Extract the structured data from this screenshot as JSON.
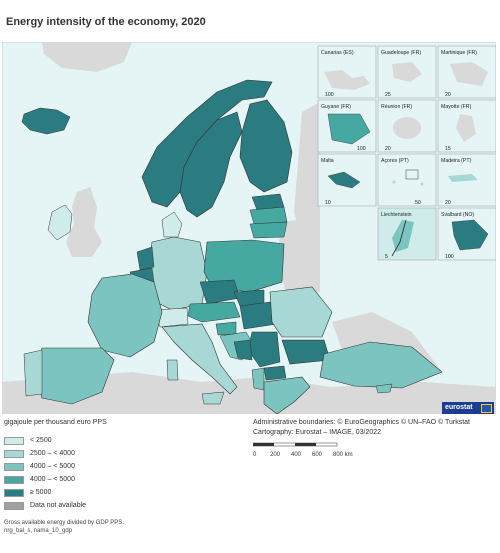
{
  "title": "Energy intensity of the economy, 2020",
  "units": "gigajoule per thousand euro PPS",
  "credits": {
    "line1": "Administrative boundaries: © EuroGeographics © UN–FAO © Turkstat",
    "line2": "Cartography: Eurostat – IMAGE, 03/2022"
  },
  "scale": {
    "ticks": [
      "0",
      "200",
      "400",
      "600",
      "800 km"
    ]
  },
  "logo": "eurostat",
  "colors": {
    "sea": "#e5f5f6",
    "outside": "#d9d9d9",
    "c1": "#d0ecea",
    "c2": "#a7d8d5",
    "c3": "#7cc4bf",
    "c4": "#45a8a1",
    "c5": "#2a7c80",
    "na": "#a0a0a0"
  },
  "legend": [
    {
      "label": "< 2500",
      "color": "#d0ecea"
    },
    {
      "label": "2500 – < 4000",
      "color": "#a7d8d5"
    },
    {
      "label": "4000 – < 5000",
      "color": "#7cc4bf"
    },
    {
      "label": "4000 – < 5000",
      "color": "#45a8a1"
    },
    {
      "label": "≥ 5000",
      "color": "#2a7c80"
    },
    {
      "label": "Data not available",
      "color": "#a0a0a0"
    }
  ],
  "insets": [
    {
      "name": "Canarias (ES)",
      "scale": "100"
    },
    {
      "name": "Guadeloupe (FR)",
      "scale": "25"
    },
    {
      "name": "Martinique (FR)",
      "scale": "20"
    },
    {
      "name": "Guyane (FR)",
      "scale": "100"
    },
    {
      "name": "Réunion (FR)",
      "scale": "20"
    },
    {
      "name": "Mayotte (FR)",
      "scale": "15"
    },
    {
      "name": "Malta",
      "scale": "10"
    },
    {
      "name": "Açores (PT)",
      "scale": "50"
    },
    {
      "name": "Madeira (PT)",
      "scale": "20"
    },
    {
      "name": "Liechtenstein",
      "scale": "5"
    },
    {
      "name": "Svalbard (NO)",
      "scale": "100"
    }
  ],
  "footnote": {
    "line1": "Gross available energy divided by GDP PPS.",
    "line2": "nrg_bal_s, nama_10_gdp"
  }
}
